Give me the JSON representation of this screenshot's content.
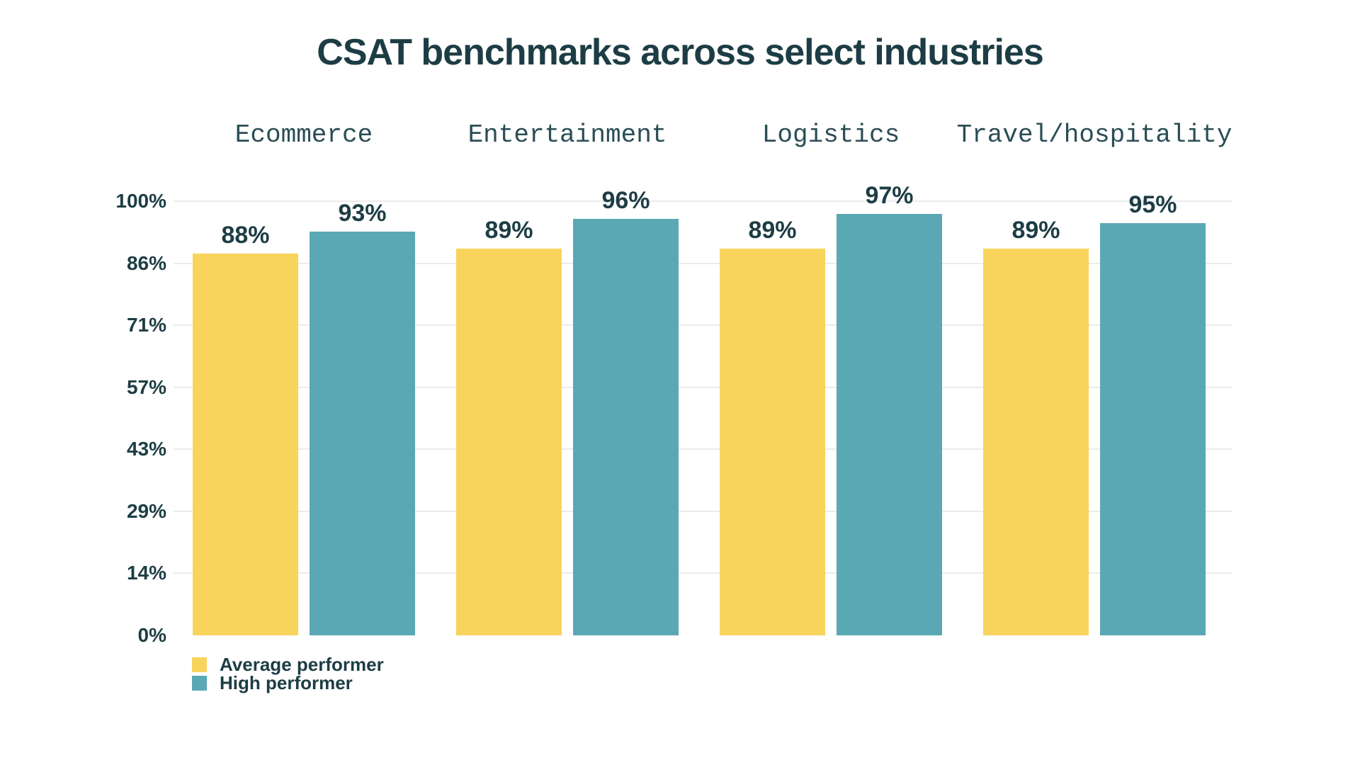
{
  "title": "CSAT benchmarks across select industries",
  "colors": {
    "average_performer": "#F8D45C",
    "high_performer": "#5BA8B5",
    "text": "#1D3D45",
    "category_text": "#2B4D55",
    "gridline": "#EBEBEB",
    "background": "#FFFFFF"
  },
  "legend": {
    "items": [
      {
        "label": "Average performer",
        "color_key": "average_performer"
      },
      {
        "label": "High performer",
        "color_key": "high_performer"
      }
    ]
  },
  "chart_data": {
    "type": "bar",
    "title": "CSAT benchmarks across select industries",
    "categories": [
      "Ecommerce",
      "Entertainment",
      "Logistics",
      "Travel/hospitality"
    ],
    "series": [
      {
        "name": "Average performer",
        "values": [
          88,
          89,
          89,
          89
        ]
      },
      {
        "name": "High performer",
        "values": [
          93,
          96,
          97,
          95
        ]
      }
    ],
    "value_label_format": "{v}%",
    "xlabel": "",
    "ylabel": "",
    "ylim": [
      0,
      100
    ],
    "y_ticks": [
      {
        "label": "100%",
        "value": 100
      },
      {
        "label": "86%",
        "value": 85.71
      },
      {
        "label": "71%",
        "value": 71.43
      },
      {
        "label": "57%",
        "value": 57.14
      },
      {
        "label": "43%",
        "value": 42.86
      },
      {
        "label": "29%",
        "value": 28.57
      },
      {
        "label": "14%",
        "value": 14.29
      },
      {
        "label": "0%",
        "value": 0
      }
    ],
    "grid": "horizontal",
    "legend_position": "bottom-left"
  }
}
